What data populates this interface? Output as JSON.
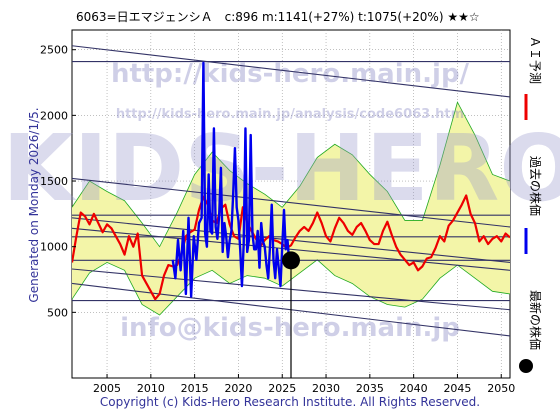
{
  "header": {
    "title": "6063=日エマジェンシＡ　c:896 m:1141(+27%) t:1075(+20%) ★★☆"
  },
  "side_labels": {
    "left_vertical": "Generated on Monday 2026/1/5.",
    "legend_ai": "ＡＩ予測",
    "legend_past": "過去の株価",
    "legend_latest": "最新の株価"
  },
  "watermarks": {
    "url_top": "http://kids-hero.main.jp/",
    "url_analysis": "http://kids-hero.main.jp/analysis/code6063.htm",
    "big": "KIDS-HERO",
    "mail": "info@kids-hero.main.jp"
  },
  "footer": {
    "copyright": "Copyright (c) Kids-Hero Research Institute. All Rights Reserved."
  },
  "colors": {
    "ai_line": "#ee0000",
    "past_line": "#0000ee",
    "band_fill": "#f3f5a8",
    "band_line": "#22aa22",
    "trend_line": "#333366",
    "grid": "#9a9a9a",
    "latest_dot": "#000000"
  },
  "chart_data": {
    "type": "line",
    "title": "6063=日エマジェンシＡ　c:896 m:1141(+27%) t:1075(+20%) ★★☆",
    "xlim": [
      2001.0,
      2051.0
    ],
    "ylim": [
      0,
      2650
    ],
    "x_ticks": [
      2005,
      2010,
      2015,
      2020,
      2025,
      2030,
      2035,
      2040,
      2045,
      2050
    ],
    "y_ticks": [
      500,
      1000,
      1500,
      2000,
      2500
    ],
    "grid": true,
    "latest": {
      "x": 2026.0,
      "y": 896
    },
    "horizontal_lines": [
      2410,
      1240,
      1075,
      896,
      590
    ],
    "trend_lines": [
      {
        "x": [
          2001,
          2051
        ],
        "y": [
          2530,
          2140
        ]
      },
      {
        "x": [
          2001,
          2051
        ],
        "y": [
          1520,
          1150
        ]
      },
      {
        "x": [
          2001,
          2051
        ],
        "y": [
          1140,
          820
        ]
      },
      {
        "x": [
          2001,
          2051
        ],
        "y": [
          1220,
          880
        ]
      },
      {
        "x": [
          2001,
          2051
        ],
        "y": [
          720,
          320
        ]
      },
      {
        "x": [
          2001,
          2051
        ],
        "y": [
          830,
          520
        ]
      }
    ],
    "series": [
      {
        "name": "ＡＩ予測",
        "x": [
          2001.0,
          2001.5,
          2002.0,
          2002.5,
          2003.0,
          2003.5,
          2004.0,
          2004.5,
          2005.0,
          2005.5,
          2006.0,
          2006.5,
          2007.0,
          2007.5,
          2008.0,
          2008.5,
          2009.0,
          2009.5,
          2010.0,
          2010.5,
          2011.0,
          2011.5,
          2012.0,
          2012.5,
          2013.0,
          2013.5,
          2014.0,
          2014.5,
          2015.0,
          2015.5,
          2016.0,
          2016.5,
          2017.0,
          2017.5,
          2018.0,
          2018.5,
          2019.0,
          2019.5,
          2020.0,
          2020.5,
          2021.0,
          2021.5,
          2022.0,
          2022.5,
          2023.0,
          2023.5,
          2024.0,
          2024.5,
          2025.0,
          2025.5,
          2026.0,
          2026.5,
          2027.0,
          2027.5,
          2028.0,
          2028.5,
          2029.0,
          2029.5,
          2030.0,
          2030.5,
          2031.0,
          2031.5,
          2032.0,
          2032.5,
          2033.0,
          2033.5,
          2034.0,
          2034.5,
          2035.0,
          2035.5,
          2036.0,
          2036.5,
          2037.0,
          2037.5,
          2038.0,
          2038.5,
          2039.0,
          2039.5,
          2040.0,
          2040.5,
          2041.0,
          2041.5,
          2042.0,
          2042.5,
          2043.0,
          2043.5,
          2044.0,
          2044.5,
          2045.0,
          2045.5,
          2046.0,
          2046.5,
          2047.0,
          2047.5,
          2048.0,
          2048.5,
          2049.0,
          2049.5,
          2050.0,
          2050.5,
          2051.0
        ],
        "y": [
          880,
          1080,
          1260,
          1230,
          1170,
          1250,
          1180,
          1110,
          1170,
          1140,
          1080,
          1020,
          940,
          1080,
          1000,
          1100,
          780,
          720,
          660,
          600,
          640,
          780,
          860,
          850,
          860,
          950,
          1080,
          1110,
          1130,
          1280,
          1380,
          1320,
          1200,
          1180,
          1290,
          1320,
          1170,
          1080,
          1060,
          1300,
          1180,
          1120,
          1060,
          1000,
          1050,
          1080,
          1050,
          1040,
          1020,
          990,
          1010,
          1070,
          1120,
          1150,
          1120,
          1180,
          1260,
          1180,
          1080,
          1040,
          1140,
          1220,
          1180,
          1120,
          1090,
          1150,
          1180,
          1120,
          1050,
          1020,
          1020,
          1120,
          1190,
          1090,
          1000,
          940,
          900,
          860,
          880,
          820,
          850,
          910,
          920,
          990,
          1080,
          1040,
          1160,
          1200,
          1260,
          1320,
          1390,
          1250,
          1180,
          1040,
          1080,
          1020,
          1060,
          1080,
          1040,
          1100,
          1070
        ]
      },
      {
        "name": "過去の株価",
        "x": [
          2012.5,
          2012.8,
          2013.1,
          2013.4,
          2013.7,
          2014.0,
          2014.3,
          2014.6,
          2014.9,
          2015.2,
          2015.5,
          2015.8,
          2016.0,
          2016.2,
          2016.4,
          2016.6,
          2016.8,
          2017.0,
          2017.2,
          2017.4,
          2017.6,
          2017.8,
          2018.0,
          2018.2,
          2018.4,
          2018.6,
          2018.8,
          2019.0,
          2019.2,
          2019.4,
          2019.6,
          2019.8,
          2020.0,
          2020.2,
          2020.4,
          2020.6,
          2020.8,
          2021.0,
          2021.2,
          2021.4,
          2021.6,
          2021.8,
          2022.0,
          2022.2,
          2022.4,
          2022.6,
          2022.8,
          2023.0,
          2023.2,
          2023.4,
          2023.6,
          2023.8,
          2024.0,
          2024.2,
          2024.4,
          2024.6,
          2024.8,
          2025.0,
          2025.2,
          2025.4,
          2025.6,
          2025.8,
          2026.0
        ],
        "y": [
          900,
          760,
          1050,
          820,
          1120,
          640,
          1220,
          620,
          1080,
          900,
          1180,
          1220,
          2400,
          1100,
          1000,
          1550,
          1120,
          1100,
          1900,
          1150,
          1060,
          1240,
          1600,
          960,
          1180,
          1080,
          920,
          1050,
          1120,
          1400,
          1750,
          1300,
          1200,
          980,
          700,
          1020,
          1900,
          960,
          1050,
          1850,
          1100,
          980,
          980,
          1120,
          840,
          1180,
          1040,
          1000,
          860,
          760,
          1000,
          1320,
          900,
          760,
          980,
          840,
          700,
          1000,
          1280,
          980,
          1050,
          880,
          900
        ]
      }
    ],
    "bands": [
      {
        "x": [
          2001,
          2003,
          2005,
          2007,
          2009,
          2011,
          2013,
          2015,
          2017,
          2019,
          2021,
          2023,
          2025,
          2027,
          2029,
          2031,
          2033,
          2035,
          2037,
          2039,
          2041,
          2043,
          2045,
          2047,
          2049,
          2051
        ],
        "upper": [
          1300,
          1500,
          1420,
          1350,
          1180,
          1000,
          1260,
          1550,
          1720,
          1580,
          1480,
          1400,
          1300,
          1460,
          1680,
          1780,
          1700,
          1550,
          1420,
          1200,
          1200,
          1620,
          2100,
          1850,
          1550,
          1500
        ],
        "lower": [
          600,
          800,
          880,
          820,
          560,
          480,
          620,
          760,
          820,
          720,
          780,
          760,
          700,
          800,
          900,
          780,
          720,
          620,
          560,
          540,
          600,
          760,
          860,
          760,
          660,
          640
        ]
      }
    ]
  }
}
